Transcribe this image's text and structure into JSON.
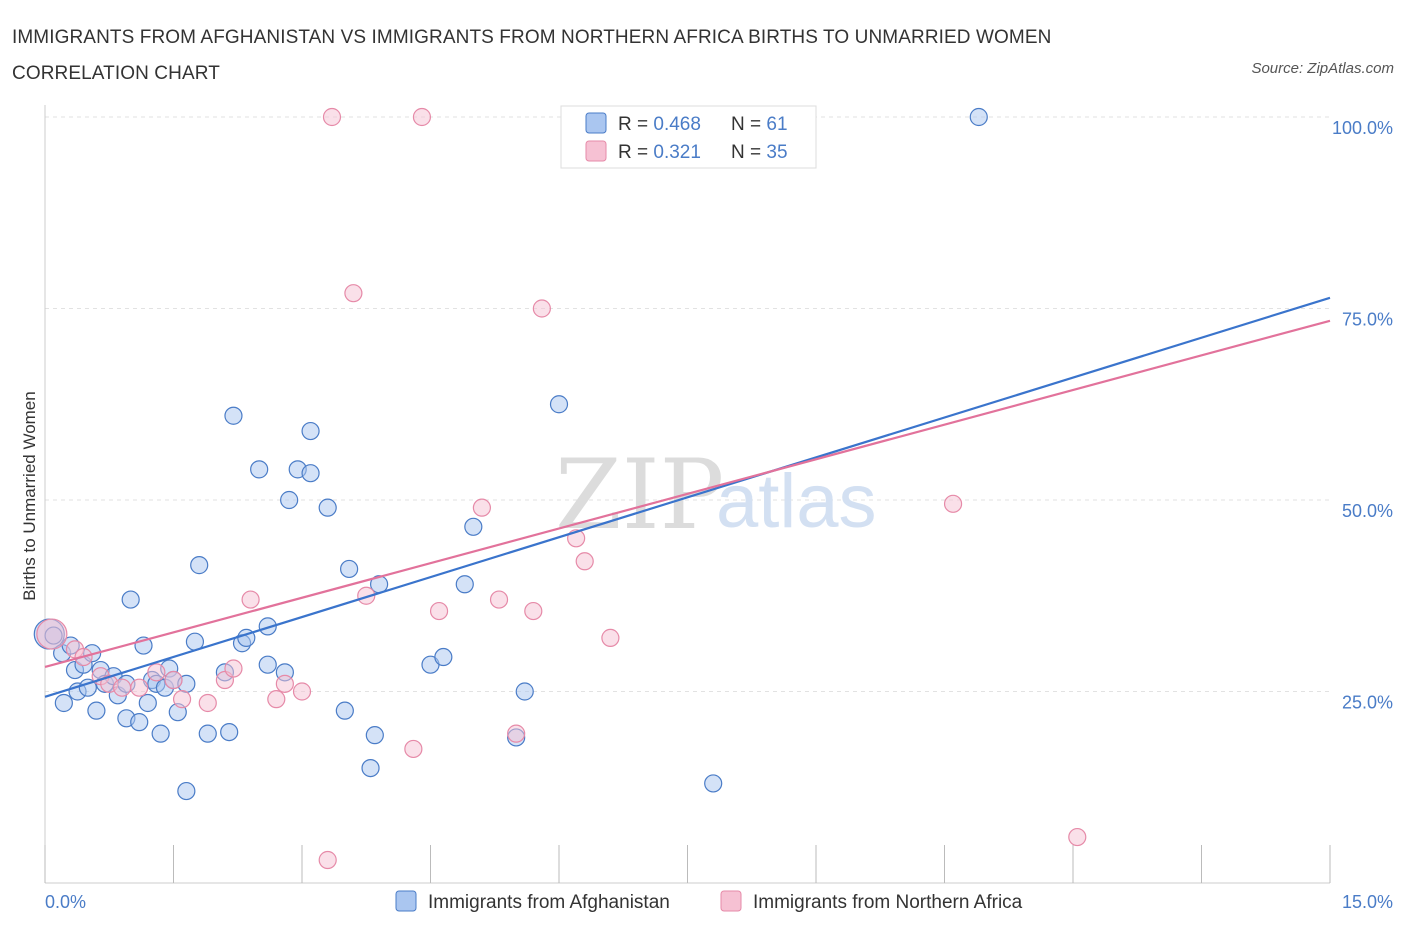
{
  "title": "IMMIGRANTS FROM AFGHANISTAN VS IMMIGRANTS FROM NORTHERN AFRICA BIRTHS TO UNMARRIED WOMEN CORRELATION CHART",
  "source": "Source: ZipAtlas.com",
  "watermark": {
    "zip": "ZIP",
    "atlas": "atlas"
  },
  "chart_data": {
    "type": "scatter",
    "title": "IMMIGRANTS FROM AFGHANISTAN VS IMMIGRANTS FROM NORTHERN AFRICA BIRTHS TO UNMARRIED WOMEN CORRELATION CHART",
    "ylabel": "Births to Unmarried Women",
    "xlim": [
      0,
      15
    ],
    "ylim": [
      0,
      100
    ],
    "x_tick_labels": [
      "0.0%",
      "15.0%"
    ],
    "y_ticks": [
      25,
      50,
      75,
      100
    ],
    "y_tick_labels": [
      "25.0%",
      "50.0%",
      "75.0%",
      "100.0%"
    ],
    "grid": true,
    "legend_placement": "bottom-center",
    "stats": [
      {
        "r_label": "R = ",
        "r": "0.468",
        "n_label": "N = ",
        "n": "61"
      },
      {
        "r_label": "R = ",
        "r": "0.321",
        "n_label": "N = ",
        "n": "35"
      }
    ],
    "series": [
      {
        "name": "Immigrants from Afghanistan",
        "color": "#4a7cc7",
        "fill": "#aac6f0",
        "trend": {
          "x": [
            0,
            15
          ],
          "y": [
            24.3,
            76.4
          ],
          "color": "#3a74cc"
        },
        "points": [
          [
            0.05,
            32.5
          ],
          [
            0.1,
            32.3
          ],
          [
            0.2,
            30.0
          ],
          [
            0.22,
            23.5
          ],
          [
            0.3,
            31.0
          ],
          [
            0.35,
            27.8
          ],
          [
            0.38,
            25.0
          ],
          [
            0.45,
            28.5
          ],
          [
            0.5,
            25.5
          ],
          [
            0.55,
            30.0
          ],
          [
            0.6,
            22.5
          ],
          [
            0.65,
            27.8
          ],
          [
            0.7,
            26.0
          ],
          [
            0.8,
            27.0
          ],
          [
            0.85,
            24.5
          ],
          [
            0.95,
            26.0
          ],
          [
            0.95,
            21.5
          ],
          [
            1.0,
            37.0
          ],
          [
            1.1,
            21.0
          ],
          [
            1.15,
            31.0
          ],
          [
            1.2,
            23.5
          ],
          [
            1.25,
            26.5
          ],
          [
            1.3,
            26.0
          ],
          [
            1.35,
            19.5
          ],
          [
            1.4,
            25.5
          ],
          [
            1.45,
            28.0
          ],
          [
            1.5,
            26.5
          ],
          [
            1.55,
            22.3
          ],
          [
            1.65,
            26.0
          ],
          [
            1.65,
            12.0
          ],
          [
            1.75,
            31.5
          ],
          [
            1.8,
            41.5
          ],
          [
            1.9,
            19.5
          ],
          [
            2.1,
            27.5
          ],
          [
            2.15,
            19.7
          ],
          [
            2.2,
            61.0
          ],
          [
            2.3,
            31.3
          ],
          [
            2.35,
            32.0
          ],
          [
            2.5,
            54.0
          ],
          [
            2.6,
            33.5
          ],
          [
            2.6,
            28.5
          ],
          [
            2.8,
            27.5
          ],
          [
            2.85,
            50.0
          ],
          [
            2.95,
            54.0
          ],
          [
            3.1,
            53.5
          ],
          [
            3.1,
            59.0
          ],
          [
            3.3,
            49.0
          ],
          [
            3.5,
            22.5
          ],
          [
            3.55,
            41.0
          ],
          [
            3.8,
            15.0
          ],
          [
            3.85,
            19.3
          ],
          [
            3.9,
            39.0
          ],
          [
            4.5,
            28.5
          ],
          [
            4.65,
            29.5
          ],
          [
            4.9,
            39.0
          ],
          [
            5.0,
            46.5
          ],
          [
            5.5,
            19.0
          ],
          [
            5.6,
            25.0
          ],
          [
            6.0,
            62.5
          ],
          [
            7.8,
            13.0
          ],
          [
            10.9,
            100.0
          ]
        ]
      },
      {
        "name": "Immigrants from Northern Africa",
        "color": "#e68aa8",
        "fill": "#f6c1d3",
        "trend": {
          "x": [
            0,
            15
          ],
          "y": [
            28.2,
            73.4
          ],
          "color": "#e2729b"
        },
        "points": [
          [
            0.08,
            32.5
          ],
          [
            0.35,
            30.5
          ],
          [
            0.45,
            29.5
          ],
          [
            0.65,
            27.0
          ],
          [
            0.75,
            26.0
          ],
          [
            0.9,
            25.5
          ],
          [
            1.1,
            25.5
          ],
          [
            1.3,
            27.5
          ],
          [
            1.5,
            26.5
          ],
          [
            1.6,
            24.0
          ],
          [
            1.9,
            23.5
          ],
          [
            2.1,
            26.5
          ],
          [
            2.2,
            28.0
          ],
          [
            2.4,
            37.0
          ],
          [
            2.7,
            24.0
          ],
          [
            2.8,
            26.0
          ],
          [
            3.0,
            25.0
          ],
          [
            3.3,
            3.0
          ],
          [
            3.35,
            100.0
          ],
          [
            3.6,
            77.0
          ],
          [
            3.75,
            37.5
          ],
          [
            4.3,
            17.5
          ],
          [
            4.4,
            100.0
          ],
          [
            4.6,
            35.5
          ],
          [
            5.1,
            49.0
          ],
          [
            5.3,
            37.0
          ],
          [
            5.5,
            19.5
          ],
          [
            5.7,
            35.5
          ],
          [
            5.8,
            75.0
          ],
          [
            6.2,
            45.0
          ],
          [
            6.3,
            42.0
          ],
          [
            6.6,
            32.0
          ],
          [
            7.9,
            100.0
          ],
          [
            10.6,
            49.5
          ],
          [
            12.05,
            6.0
          ]
        ]
      }
    ]
  }
}
